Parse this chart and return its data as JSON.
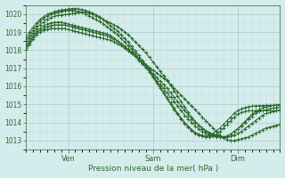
{
  "xlabel": "Pression niveau de la mer( hPa )",
  "ylim": [
    1012.5,
    1020.5
  ],
  "xlim": [
    0,
    288
  ],
  "yticks": [
    1013,
    1014,
    1015,
    1016,
    1017,
    1018,
    1019,
    1020
  ],
  "xtick_positions": [
    48,
    144,
    240
  ],
  "xtick_labels": [
    "Ven",
    "Sam",
    "Dim"
  ],
  "bg_color": "#d4ecec",
  "grid_color_major": "#aacccc",
  "grid_color_minor": "#c0dcdc",
  "line_color": "#2d6a2d",
  "marker_color": "#2d6a2d",
  "series_x": [
    0,
    4,
    8,
    12,
    16,
    20,
    24,
    28,
    32,
    36,
    40,
    44,
    48,
    52,
    56,
    60,
    64,
    68,
    72,
    76,
    80,
    84,
    88,
    92,
    96,
    100,
    104,
    108,
    112,
    116,
    120,
    124,
    128,
    132,
    136,
    140,
    144,
    148,
    152,
    156,
    160,
    164,
    168,
    172,
    176,
    180,
    184,
    188,
    192,
    196,
    200,
    204,
    208,
    212,
    216,
    220,
    224,
    228,
    232,
    236,
    240,
    244,
    248,
    252,
    256,
    260,
    264,
    268,
    272,
    276,
    280,
    284,
    288
  ],
  "series": [
    [
      1018.0,
      1018.3,
      1018.6,
      1018.85,
      1019.0,
      1019.1,
      1019.15,
      1019.2,
      1019.2,
      1019.2,
      1019.2,
      1019.2,
      1019.15,
      1019.1,
      1019.05,
      1019.0,
      1018.95,
      1018.9,
      1018.85,
      1018.8,
      1018.75,
      1018.7,
      1018.65,
      1018.6,
      1018.55,
      1018.45,
      1018.35,
      1018.25,
      1018.1,
      1017.95,
      1017.8,
      1017.65,
      1017.5,
      1017.35,
      1017.2,
      1017.05,
      1016.9,
      1016.75,
      1016.6,
      1016.45,
      1016.3,
      1016.1,
      1015.9,
      1015.7,
      1015.5,
      1015.3,
      1015.1,
      1014.9,
      1014.7,
      1014.5,
      1014.3,
      1014.1,
      1013.9,
      1013.7,
      1013.5,
      1013.3,
      1013.15,
      1013.05,
      1013.0,
      1013.0,
      1013.05,
      1013.1,
      1013.15,
      1013.2,
      1013.3,
      1013.4,
      1013.5,
      1013.6,
      1013.7,
      1013.75,
      1013.8,
      1013.85,
      1013.9
    ],
    [
      1018.1,
      1018.4,
      1018.7,
      1018.95,
      1019.1,
      1019.2,
      1019.3,
      1019.35,
      1019.4,
      1019.4,
      1019.4,
      1019.4,
      1019.35,
      1019.3,
      1019.25,
      1019.2,
      1019.15,
      1019.1,
      1019.05,
      1019.0,
      1018.95,
      1018.9,
      1018.85,
      1018.8,
      1018.7,
      1018.6,
      1018.5,
      1018.35,
      1018.2,
      1018.05,
      1017.9,
      1017.7,
      1017.5,
      1017.3,
      1017.1,
      1016.9,
      1016.7,
      1016.5,
      1016.3,
      1016.1,
      1015.9,
      1015.65,
      1015.4,
      1015.15,
      1014.9,
      1014.65,
      1014.4,
      1014.2,
      1014.0,
      1013.85,
      1013.7,
      1013.55,
      1013.45,
      1013.35,
      1013.3,
      1013.25,
      1013.2,
      1013.2,
      1013.25,
      1013.3,
      1013.4,
      1013.5,
      1013.65,
      1013.8,
      1013.95,
      1014.1,
      1014.25,
      1014.4,
      1014.5,
      1014.55,
      1014.6,
      1014.65,
      1014.7
    ],
    [
      1018.2,
      1018.5,
      1018.8,
      1019.05,
      1019.2,
      1019.35,
      1019.45,
      1019.5,
      1019.55,
      1019.55,
      1019.55,
      1019.5,
      1019.45,
      1019.4,
      1019.35,
      1019.3,
      1019.25,
      1019.2,
      1019.15,
      1019.1,
      1019.05,
      1019.0,
      1018.95,
      1018.9,
      1018.8,
      1018.65,
      1018.5,
      1018.35,
      1018.2,
      1018.05,
      1017.85,
      1017.65,
      1017.45,
      1017.25,
      1017.05,
      1016.8,
      1016.55,
      1016.3,
      1016.1,
      1015.9,
      1015.65,
      1015.4,
      1015.15,
      1014.9,
      1014.65,
      1014.4,
      1014.2,
      1014.0,
      1013.8,
      1013.65,
      1013.5,
      1013.4,
      1013.3,
      1013.25,
      1013.2,
      1013.2,
      1013.2,
      1013.25,
      1013.35,
      1013.5,
      1013.65,
      1013.8,
      1014.0,
      1014.2,
      1014.35,
      1014.5,
      1014.6,
      1014.65,
      1014.7,
      1014.75,
      1014.8,
      1014.82,
      1014.85
    ],
    [
      1018.35,
      1018.65,
      1018.95,
      1019.2,
      1019.4,
      1019.55,
      1019.7,
      1019.8,
      1019.87,
      1019.92,
      1019.95,
      1019.97,
      1020.0,
      1020.02,
      1020.05,
      1020.08,
      1020.1,
      1020.1,
      1020.05,
      1020.0,
      1019.9,
      1019.8,
      1019.7,
      1019.6,
      1019.5,
      1019.4,
      1019.3,
      1019.15,
      1019.0,
      1018.85,
      1018.65,
      1018.45,
      1018.25,
      1018.05,
      1017.85,
      1017.6,
      1017.35,
      1017.1,
      1016.85,
      1016.6,
      1016.35,
      1016.05,
      1015.75,
      1015.45,
      1015.15,
      1014.85,
      1014.55,
      1014.3,
      1014.05,
      1013.85,
      1013.65,
      1013.5,
      1013.4,
      1013.3,
      1013.25,
      1013.2,
      1013.2,
      1013.25,
      1013.35,
      1013.5,
      1013.65,
      1013.85,
      1014.05,
      1014.25,
      1014.45,
      1014.6,
      1014.7,
      1014.8,
      1014.87,
      1014.92,
      1014.95,
      1014.97,
      1015.0
    ],
    [
      1018.5,
      1018.8,
      1019.1,
      1019.35,
      1019.6,
      1019.75,
      1019.88,
      1019.97,
      1020.05,
      1020.1,
      1020.15,
      1020.18,
      1020.2,
      1020.2,
      1020.18,
      1020.15,
      1020.1,
      1020.0,
      1019.9,
      1019.8,
      1019.7,
      1019.58,
      1019.45,
      1019.3,
      1019.15,
      1019.0,
      1018.85,
      1018.65,
      1018.45,
      1018.25,
      1018.05,
      1017.8,
      1017.55,
      1017.3,
      1017.05,
      1016.8,
      1016.5,
      1016.2,
      1015.9,
      1015.6,
      1015.3,
      1015.0,
      1014.7,
      1014.45,
      1014.2,
      1013.95,
      1013.75,
      1013.55,
      1013.4,
      1013.3,
      1013.25,
      1013.2,
      1013.2,
      1013.25,
      1013.35,
      1013.5,
      1013.7,
      1013.9,
      1014.1,
      1014.3,
      1014.45,
      1014.55,
      1014.6,
      1014.65,
      1014.65,
      1014.65,
      1014.65,
      1014.65,
      1014.65,
      1014.65,
      1014.65,
      1014.65,
      1014.65
    ],
    [
      1018.7,
      1019.0,
      1019.25,
      1019.5,
      1019.7,
      1019.85,
      1019.97,
      1020.05,
      1020.12,
      1020.18,
      1020.22,
      1020.25,
      1020.28,
      1020.3,
      1020.3,
      1020.28,
      1020.25,
      1020.2,
      1020.12,
      1020.05,
      1019.95,
      1019.82,
      1019.68,
      1019.52,
      1019.35,
      1019.2,
      1019.05,
      1018.85,
      1018.65,
      1018.45,
      1018.2,
      1017.95,
      1017.7,
      1017.45,
      1017.2,
      1016.92,
      1016.62,
      1016.3,
      1016.0,
      1015.7,
      1015.4,
      1015.1,
      1014.8,
      1014.5,
      1014.25,
      1014.0,
      1013.8,
      1013.6,
      1013.45,
      1013.35,
      1013.3,
      1013.25,
      1013.3,
      1013.4,
      1013.55,
      1013.7,
      1013.9,
      1014.1,
      1014.3,
      1014.5,
      1014.65,
      1014.75,
      1014.82,
      1014.87,
      1014.9,
      1014.92,
      1014.93,
      1014.94,
      1014.95,
      1014.95,
      1014.95,
      1014.95,
      1014.95
    ]
  ]
}
